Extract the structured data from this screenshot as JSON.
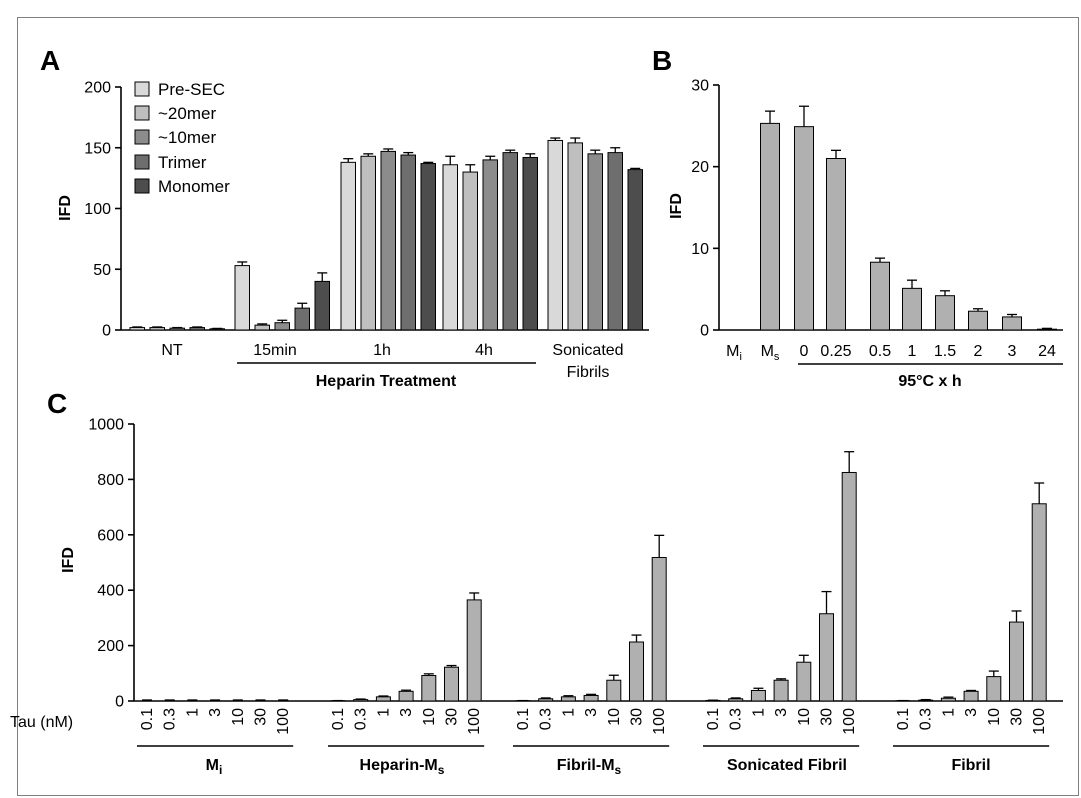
{
  "colors": {
    "pre_sec": "#d9d9d9",
    "mer20": "#bfbfbf",
    "mer10": "#8c8c8c",
    "trimer": "#6e6e6e",
    "monomer": "#4d4d4d",
    "single": "#b0b0b0",
    "axis": "#000000"
  },
  "chart_data": [
    {
      "panel": "A",
      "type": "bar",
      "ylabel": "IFD",
      "ylim": [
        0,
        200
      ],
      "yticks": [
        "0",
        "50",
        "100",
        "150",
        "200"
      ],
      "categories": [
        "NT",
        "15min",
        "1h",
        "4h",
        "Sonicated Fibrils"
      ],
      "category_labels": [
        "NT",
        "15min",
        "1h",
        "4h",
        "Sonicated",
        "Fibrils"
      ],
      "group_bracket_label": "Heparin Treatment",
      "legend_placement": "top-left",
      "series": [
        {
          "name": "Pre-SEC",
          "values": [
            2,
            53,
            138,
            136,
            156
          ],
          "errors": [
            0.5,
            3,
            3,
            7,
            2
          ]
        },
        {
          "name": "~20mer",
          "values": [
            2,
            4,
            143,
            130,
            154
          ],
          "errors": [
            0.5,
            1,
            2,
            6,
            4
          ]
        },
        {
          "name": "~10mer",
          "values": [
            1.5,
            6,
            147,
            140,
            145
          ],
          "errors": [
            0.5,
            2,
            2,
            3,
            3
          ]
        },
        {
          "name": "Trimer",
          "values": [
            2,
            18,
            144,
            146,
            146
          ],
          "errors": [
            0.5,
            4,
            2,
            2,
            4
          ]
        },
        {
          "name": "Monomer",
          "values": [
            1,
            40,
            137,
            142,
            132
          ],
          "errors": [
            0.3,
            7,
            1,
            3,
            1
          ]
        }
      ]
    },
    {
      "panel": "B",
      "type": "bar",
      "ylabel": "IFD",
      "ylim": [
        0,
        30
      ],
      "yticks": [
        "0",
        "10",
        "20",
        "30"
      ],
      "categories": [
        "Mi",
        "Ms",
        "0",
        "0.25",
        "0.5",
        "1",
        "1.5",
        "2",
        "3",
        "24"
      ],
      "values": [
        0,
        25.3,
        24.9,
        21,
        8.3,
        5.1,
        4.2,
        2.3,
        1.6,
        0.1
      ],
      "errors": [
        0,
        1.5,
        2.5,
        1,
        0.5,
        1,
        0.6,
        0.3,
        0.3,
        0.1
      ],
      "bracket_label": "95°C x h"
    },
    {
      "panel": "C",
      "type": "bar",
      "ylabel": "IFD",
      "ylim": [
        0,
        1000
      ],
      "yticks": [
        "0",
        "200",
        "400",
        "600",
        "800",
        "1000"
      ],
      "x_prefix_label": "Tau (nM)",
      "concentrations": [
        "0.1",
        "0.3",
        "1",
        "3",
        "10",
        "30",
        "100"
      ],
      "groups": [
        {
          "name": "Mi",
          "values": [
            0,
            0,
            0,
            0,
            0,
            0,
            0
          ],
          "errors": [
            0,
            0,
            0,
            0,
            0,
            0,
            0
          ]
        },
        {
          "name": "Heparin-Ms",
          "values": [
            1,
            5,
            15,
            35,
            92,
            122,
            365
          ],
          "errors": [
            0.5,
            2,
            3,
            4,
            6,
            6,
            25
          ]
        },
        {
          "name": "Fibril-Ms",
          "values": [
            1,
            8,
            15,
            20,
            75,
            213,
            518
          ],
          "errors": [
            0.5,
            3,
            4,
            4,
            18,
            25,
            80
          ]
        },
        {
          "name": "Sonicated Fibril",
          "values": [
            2,
            8,
            38,
            75,
            140,
            315,
            825
          ],
          "errors": [
            1,
            3,
            8,
            5,
            25,
            80,
            75
          ]
        },
        {
          "name": "Fibril",
          "values": [
            1,
            3,
            10,
            35,
            88,
            285,
            712
          ],
          "errors": [
            0.5,
            2,
            4,
            3,
            20,
            40,
            75
          ]
        }
      ]
    }
  ]
}
